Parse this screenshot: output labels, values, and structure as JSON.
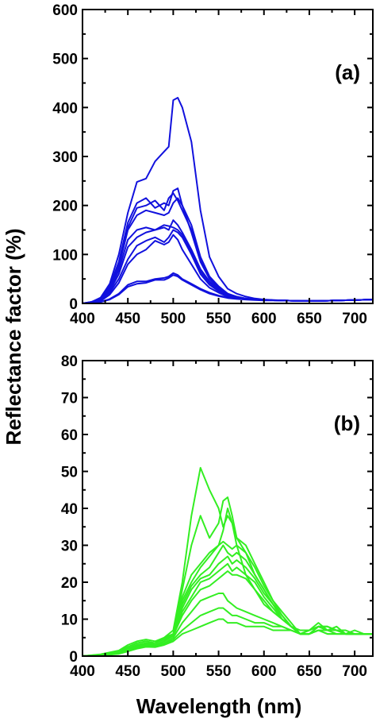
{
  "figure": {
    "ylabel": "Reflectance factor (%)",
    "xlabel": "Wavelength (nm)"
  },
  "chart_data": [
    {
      "type": "line",
      "panel": "(a)",
      "color": "#1111dd",
      "xlim": [
        400,
        720
      ],
      "ylim": [
        0,
        600
      ],
      "xticks": [
        400,
        450,
        500,
        550,
        600,
        650,
        700
      ],
      "yticks": [
        0,
        100,
        200,
        300,
        400,
        500,
        600
      ],
      "x": [
        400,
        410,
        420,
        430,
        440,
        450,
        460,
        470,
        480,
        490,
        495,
        500,
        505,
        510,
        520,
        530,
        540,
        550,
        560,
        570,
        580,
        590,
        600,
        620,
        640,
        660,
        680,
        700,
        720
      ],
      "series": [
        {
          "values": [
            0,
            3,
            12,
            40,
            100,
            185,
            248,
            255,
            290,
            310,
            320,
            415,
            420,
            400,
            330,
            190,
            95,
            55,
            30,
            20,
            14,
            10,
            8,
            6,
            5,
            5,
            6,
            7,
            8
          ]
        },
        {
          "values": [
            0,
            3,
            10,
            35,
            85,
            165,
            205,
            215,
            195,
            205,
            200,
            230,
            235,
            200,
            160,
            95,
            55,
            35,
            20,
            14,
            10,
            8,
            7,
            6,
            5,
            5,
            6,
            7,
            8
          ]
        },
        {
          "values": [
            0,
            3,
            10,
            33,
            80,
            155,
            195,
            200,
            210,
            190,
            215,
            225,
            210,
            190,
            150,
            90,
            52,
            33,
            20,
            13,
            10,
            8,
            7,
            6,
            5,
            5,
            6,
            7,
            8
          ]
        },
        {
          "values": [
            0,
            2,
            9,
            30,
            75,
            150,
            180,
            190,
            185,
            180,
            185,
            205,
            215,
            200,
            145,
            85,
            50,
            30,
            18,
            12,
            9,
            8,
            7,
            6,
            5,
            5,
            6,
            7,
            8
          ]
        },
        {
          "values": [
            0,
            2,
            8,
            28,
            68,
            130,
            150,
            155,
            150,
            155,
            150,
            170,
            160,
            145,
            110,
            70,
            45,
            28,
            17,
            12,
            9,
            8,
            7,
            6,
            5,
            5,
            6,
            7,
            8
          ]
        },
        {
          "values": [
            0,
            2,
            7,
            25,
            60,
            115,
            135,
            145,
            150,
            160,
            158,
            155,
            150,
            140,
            105,
            65,
            42,
            27,
            16,
            11,
            9,
            8,
            7,
            6,
            5,
            5,
            6,
            7,
            8
          ]
        },
        {
          "values": [
            0,
            2,
            6,
            22,
            50,
            90,
            118,
            128,
            135,
            125,
            135,
            150,
            145,
            135,
            100,
            60,
            38,
            25,
            15,
            11,
            9,
            8,
            7,
            6,
            5,
            5,
            6,
            7,
            8
          ]
        },
        {
          "values": [
            0,
            2,
            5,
            18,
            42,
            80,
            100,
            110,
            128,
            120,
            125,
            140,
            130,
            110,
            80,
            50,
            32,
            22,
            14,
            10,
            9,
            8,
            7,
            6,
            5,
            5,
            6,
            7,
            8
          ]
        },
        {
          "values": [
            0,
            1,
            3,
            9,
            20,
            38,
            45,
            45,
            50,
            52,
            55,
            62,
            58,
            50,
            40,
            30,
            22,
            16,
            12,
            10,
            9,
            8,
            7,
            6,
            5,
            5,
            6,
            7,
            8
          ]
        },
        {
          "values": [
            0,
            1,
            3,
            8,
            18,
            34,
            40,
            42,
            48,
            48,
            52,
            58,
            55,
            48,
            38,
            28,
            20,
            15,
            11,
            9,
            8,
            7,
            6,
            6,
            5,
            5,
            6,
            7,
            8
          ]
        }
      ]
    },
    {
      "type": "line",
      "panel": "(b)",
      "color": "#33ee22",
      "xlim": [
        400,
        720
      ],
      "ylim": [
        0,
        80
      ],
      "xticks": [
        400,
        450,
        500,
        550,
        600,
        650,
        700
      ],
      "yticks": [
        0,
        10,
        20,
        30,
        40,
        50,
        60,
        70,
        80
      ],
      "x": [
        400,
        420,
        440,
        450,
        460,
        470,
        480,
        490,
        500,
        510,
        520,
        530,
        540,
        550,
        555,
        560,
        565,
        570,
        580,
        590,
        600,
        610,
        620,
        630,
        640,
        650,
        660,
        670,
        680,
        690,
        700,
        710,
        720
      ],
      "series": [
        {
          "values": [
            0,
            0.5,
            1.5,
            3,
            4,
            4.5,
            4,
            5,
            7,
            20,
            38,
            51,
            45,
            40,
            35,
            38,
            36,
            30,
            22,
            18,
            14,
            12,
            10,
            8,
            7,
            7,
            8,
            8,
            7,
            7,
            6,
            6,
            6
          ]
        },
        {
          "values": [
            0,
            0.4,
            1.2,
            2.5,
            3.5,
            4,
            3.5,
            5,
            6,
            18,
            30,
            38,
            32,
            36,
            42,
            43,
            38,
            32,
            28,
            22,
            18,
            14,
            11,
            8,
            6,
            7,
            8,
            7,
            7,
            6,
            6,
            6,
            6
          ]
        },
        {
          "values": [
            0,
            0.4,
            1.2,
            2.5,
            3.5,
            4,
            3.5,
            4.5,
            6,
            16,
            22,
            25,
            28,
            30,
            34,
            40,
            36,
            32,
            30,
            25,
            20,
            15,
            12,
            9,
            6,
            7,
            9,
            7,
            8,
            6,
            7,
            6,
            6
          ]
        },
        {
          "values": [
            0,
            0.3,
            1,
            2,
            3,
            3.5,
            3.5,
            4.5,
            6,
            15,
            20,
            24,
            27,
            30,
            31,
            30,
            29,
            30,
            28,
            24,
            19,
            15,
            11,
            8,
            6,
            7,
            8,
            8,
            7,
            6,
            6,
            6,
            6
          ]
        },
        {
          "values": [
            0,
            0.3,
            1,
            2,
            3,
            3.5,
            3,
            4,
            6,
            14,
            19,
            22,
            24,
            28,
            30,
            28,
            27,
            28,
            26,
            22,
            18,
            14,
            11,
            8,
            6,
            6,
            8,
            7,
            7,
            6,
            6,
            6,
            6
          ]
        },
        {
          "values": [
            0,
            0.3,
            1,
            2,
            3,
            3.5,
            3,
            4,
            6,
            13,
            18,
            21,
            22,
            25,
            26,
            27,
            25,
            26,
            24,
            21,
            17,
            14,
            10,
            8,
            6,
            6,
            8,
            7,
            7,
            6,
            6,
            6,
            6
          ]
        },
        {
          "values": [
            0,
            0.3,
            1,
            2,
            2.8,
            3.2,
            3,
            4,
            5.5,
            12,
            16,
            20,
            21,
            23,
            24,
            25,
            23,
            24,
            22,
            20,
            16,
            13,
            10,
            8,
            6,
            6,
            7,
            7,
            7,
            6,
            6,
            6,
            6
          ]
        },
        {
          "values": [
            0,
            0.3,
            0.9,
            1.8,
            2.7,
            3,
            3,
            4,
            5.5,
            11,
            15,
            18,
            19,
            21,
            22,
            23,
            22,
            22,
            21,
            18,
            15,
            12,
            10,
            8,
            6,
            6,
            7,
            7,
            7,
            6,
            6,
            6,
            6
          ]
        },
        {
          "values": [
            0,
            0.2,
            0.8,
            1.6,
            2.5,
            3,
            2.8,
            3.5,
            5,
            9,
            12,
            15,
            16,
            17,
            17,
            15,
            14,
            13,
            12,
            11,
            10,
            9,
            8,
            7,
            6,
            6,
            7,
            7,
            6,
            6,
            6,
            6,
            6
          ]
        },
        {
          "values": [
            0,
            0.2,
            0.7,
            1.5,
            2.3,
            2.8,
            2.6,
            3.2,
            4.5,
            7,
            9,
            11,
            12,
            13,
            13,
            12,
            11,
            11,
            10,
            9,
            9,
            8,
            8,
            7,
            6,
            6,
            7,
            6,
            6,
            6,
            6,
            6,
            6
          ]
        },
        {
          "values": [
            0,
            0.2,
            0.6,
            1.3,
            2,
            2.5,
            2.4,
            3,
            4,
            6,
            7,
            8,
            9,
            10,
            10,
            9,
            9,
            9,
            8,
            8,
            8,
            7,
            7,
            7,
            6,
            6,
            7,
            6,
            6,
            6,
            6,
            6,
            6
          ]
        }
      ]
    }
  ]
}
